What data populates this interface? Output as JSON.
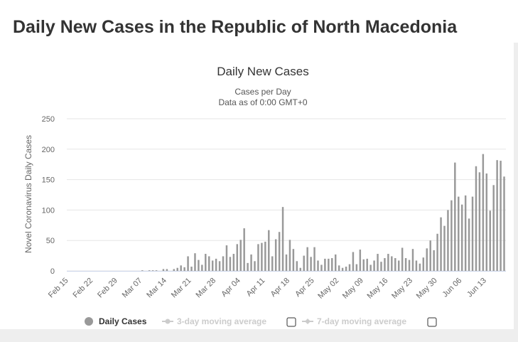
{
  "page": {
    "title": "Daily New Cases in the Republic of North Macedonia"
  },
  "chart_data": {
    "type": "bar",
    "title": "Daily New Cases",
    "subtitle_lines": [
      "Cases per Day",
      "Data as of 0:00 GMT+0"
    ],
    "ylabel": "Novel Coronavirus Daily Cases",
    "xlabel": "",
    "ylim": [
      0,
      250
    ],
    "y_ticks": [
      0,
      50,
      100,
      150,
      200,
      250
    ],
    "grid": true,
    "legend_position": "bottom",
    "x_tick_labels": [
      "Feb 15",
      "Feb 22",
      "Feb 29",
      "Mar 07",
      "Mar 14",
      "Mar 21",
      "Mar 28",
      "Apr 04",
      "Apr 11",
      "Apr 18",
      "Apr 25",
      "May 02",
      "May 09",
      "May 16",
      "May 23",
      "May 30",
      "Jun 06",
      "Jun 13"
    ],
    "x_tick_every": 7,
    "categories_start": "Feb 15",
    "series": [
      {
        "name": "Daily Cases",
        "color": "#999999",
        "values": [
          0,
          0,
          0,
          0,
          0,
          0,
          0,
          0,
          0,
          0,
          0,
          0,
          0,
          0,
          0,
          0,
          0,
          0,
          0,
          0,
          0,
          1,
          0,
          1,
          1,
          1,
          0,
          3,
          3,
          0,
          3,
          5,
          9,
          6,
          24,
          7,
          29,
          18,
          10,
          28,
          24,
          17,
          20,
          16,
          24,
          42,
          23,
          28,
          44,
          51,
          70,
          13,
          27,
          16,
          44,
          46,
          48,
          67,
          24,
          52,
          64,
          105,
          27,
          51,
          36,
          16,
          5,
          25,
          39,
          23,
          39,
          17,
          10,
          20,
          20,
          21,
          27,
          9,
          5,
          7,
          11,
          31,
          11,
          35,
          19,
          20,
          10,
          17,
          28,
          15,
          21,
          28,
          24,
          21,
          17,
          38,
          21,
          18,
          36,
          17,
          12,
          22,
          37,
          50,
          34,
          61,
          88,
          74,
          100,
          116,
          178,
          122,
          109,
          124,
          86,
          122,
          172,
          162,
          192,
          160,
          99,
          141,
          182,
          181,
          155
        ]
      },
      {
        "name": "3-day moving average",
        "color": "#cccccc",
        "values": []
      },
      {
        "name": "7-day moving average",
        "color": "#cccccc",
        "values": []
      }
    ]
  },
  "colors": {
    "bar": "#999999",
    "grid": "#e6e6e6",
    "axis_text": "#666666",
    "legend_disabled": "#cccccc",
    "footer_bg": "#eeeeee"
  },
  "legend": [
    {
      "label": "Daily Cases",
      "active": true,
      "marker": "circle"
    },
    {
      "label": "3-day moving average",
      "active": false,
      "marker": "line-dot",
      "has_checkbox": true
    },
    {
      "label": "7-day moving average",
      "active": false,
      "marker": "line-diamond",
      "has_checkbox": true
    }
  ]
}
